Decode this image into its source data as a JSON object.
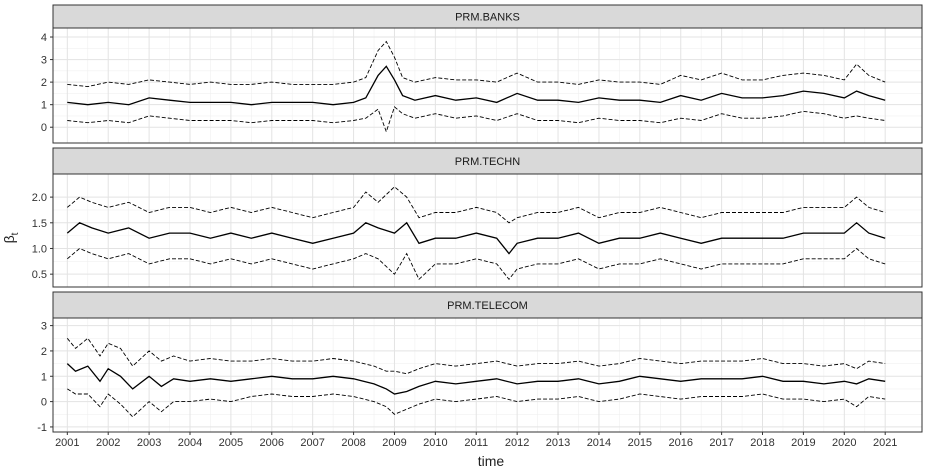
{
  "chart_data": {
    "type": "line",
    "xlabel": "time",
    "ylabel": "βt",
    "ylabel_main": "β",
    "ylabel_sub": "t",
    "x_ticks": [
      "2001",
      "2002",
      "2003",
      "2004",
      "2005",
      "2006",
      "2007",
      "2008",
      "2009",
      "2010",
      "2011",
      "2012",
      "2013",
      "2014",
      "2015",
      "2016",
      "2017",
      "2018",
      "2019",
      "2020",
      "2021"
    ],
    "xlim": [
      2000.65,
      2021.9
    ],
    "grid": true,
    "line_color": "#000000",
    "panels": [
      {
        "title": "PRM.BANKS",
        "ylim": [
          -0.7,
          4.4
        ],
        "y_ticks": [
          0,
          1,
          2,
          3,
          4
        ],
        "series": [
          {
            "style": "solid",
            "x": [
              2001,
              2001.5,
              2002,
              2002.5,
              2003,
              2003.5,
              2004,
              2004.5,
              2005,
              2005.5,
              2006,
              2006.5,
              2007,
              2007.5,
              2008,
              2008.3,
              2008.6,
              2008.8,
              2009,
              2009.2,
              2009.5,
              2010,
              2010.5,
              2011,
              2011.5,
              2012,
              2012.5,
              2013,
              2013.5,
              2014,
              2014.5,
              2015,
              2015.5,
              2016,
              2016.5,
              2017,
              2017.5,
              2018,
              2018.5,
              2019,
              2019.5,
              2020,
              2020.3,
              2020.6,
              2021
            ],
            "y": [
              1.1,
              1.0,
              1.1,
              1.0,
              1.3,
              1.2,
              1.1,
              1.1,
              1.1,
              1.0,
              1.1,
              1.1,
              1.1,
              1.0,
              1.1,
              1.3,
              2.3,
              2.7,
              2.1,
              1.4,
              1.2,
              1.4,
              1.2,
              1.3,
              1.1,
              1.5,
              1.2,
              1.2,
              1.1,
              1.3,
              1.2,
              1.2,
              1.1,
              1.4,
              1.2,
              1.5,
              1.3,
              1.3,
              1.4,
              1.6,
              1.5,
              1.3,
              1.6,
              1.4,
              1.2
            ]
          },
          {
            "style": "dashed",
            "x": [
              2001,
              2001.5,
              2002,
              2002.5,
              2003,
              2003.5,
              2004,
              2004.5,
              2005,
              2005.5,
              2006,
              2006.5,
              2007,
              2007.5,
              2008,
              2008.3,
              2008.6,
              2008.8,
              2009,
              2009.2,
              2009.5,
              2010,
              2010.5,
              2011,
              2011.5,
              2012,
              2012.5,
              2013,
              2013.5,
              2014,
              2014.5,
              2015,
              2015.5,
              2016,
              2016.5,
              2017,
              2017.5,
              2018,
              2018.5,
              2019,
              2019.5,
              2020,
              2020.3,
              2020.6,
              2021
            ],
            "y": [
              1.9,
              1.8,
              2.0,
              1.9,
              2.1,
              2.0,
              1.9,
              2.0,
              1.9,
              1.9,
              2.0,
              1.9,
              1.9,
              1.9,
              2.0,
              2.2,
              3.4,
              3.8,
              3.1,
              2.2,
              2.0,
              2.2,
              2.1,
              2.1,
              2.0,
              2.4,
              2.0,
              2.0,
              1.9,
              2.1,
              2.0,
              2.0,
              1.9,
              2.3,
              2.1,
              2.4,
              2.1,
              2.1,
              2.3,
              2.4,
              2.3,
              2.1,
              2.8,
              2.3,
              2.0
            ]
          },
          {
            "style": "dashed",
            "x": [
              2001,
              2001.5,
              2002,
              2002.5,
              2003,
              2003.5,
              2004,
              2004.5,
              2005,
              2005.5,
              2006,
              2006.5,
              2007,
              2007.5,
              2008,
              2008.3,
              2008.6,
              2008.8,
              2009,
              2009.2,
              2009.5,
              2010,
              2010.5,
              2011,
              2011.5,
              2012,
              2012.5,
              2013,
              2013.5,
              2014,
              2014.5,
              2015,
              2015.5,
              2016,
              2016.5,
              2017,
              2017.5,
              2018,
              2018.5,
              2019,
              2019.5,
              2020,
              2020.3,
              2020.6,
              2021
            ],
            "y": [
              0.3,
              0.2,
              0.3,
              0.2,
              0.5,
              0.4,
              0.3,
              0.3,
              0.3,
              0.2,
              0.3,
              0.3,
              0.3,
              0.2,
              0.3,
              0.4,
              0.8,
              -0.2,
              0.9,
              0.6,
              0.4,
              0.6,
              0.4,
              0.5,
              0.3,
              0.6,
              0.3,
              0.3,
              0.2,
              0.4,
              0.3,
              0.3,
              0.2,
              0.4,
              0.3,
              0.6,
              0.4,
              0.4,
              0.5,
              0.7,
              0.6,
              0.4,
              0.5,
              0.4,
              0.3
            ]
          }
        ]
      },
      {
        "title": "PRM.TECHN",
        "ylim": [
          0.25,
          2.45
        ],
        "y_ticks": [
          0.5,
          1.0,
          1.5,
          2.0
        ],
        "y_tick_labels": [
          "0.5",
          "1.0",
          "1.5",
          "2.0"
        ],
        "series": [
          {
            "style": "solid",
            "x": [
              2001,
              2001.3,
              2001.6,
              2002,
              2002.5,
              2003,
              2003.5,
              2004,
              2004.5,
              2005,
              2005.5,
              2006,
              2006.5,
              2007,
              2007.5,
              2008,
              2008.3,
              2008.6,
              2009,
              2009.3,
              2009.6,
              2010,
              2010.5,
              2011,
              2011.5,
              2011.8,
              2012,
              2012.5,
              2013,
              2013.5,
              2014,
              2014.5,
              2015,
              2015.5,
              2016,
              2016.5,
              2017,
              2017.5,
              2018,
              2018.5,
              2019,
              2019.5,
              2020,
              2020.3,
              2020.6,
              2021
            ],
            "y": [
              1.3,
              1.5,
              1.4,
              1.3,
              1.4,
              1.2,
              1.3,
              1.3,
              1.2,
              1.3,
              1.2,
              1.3,
              1.2,
              1.1,
              1.2,
              1.3,
              1.5,
              1.4,
              1.3,
              1.5,
              1.1,
              1.2,
              1.2,
              1.3,
              1.2,
              0.9,
              1.1,
              1.2,
              1.2,
              1.3,
              1.1,
              1.2,
              1.2,
              1.3,
              1.2,
              1.1,
              1.2,
              1.2,
              1.2,
              1.2,
              1.3,
              1.3,
              1.3,
              1.5,
              1.3,
              1.2
            ]
          },
          {
            "style": "dashed",
            "x": [
              2001,
              2001.3,
              2001.6,
              2002,
              2002.5,
              2003,
              2003.5,
              2004,
              2004.5,
              2005,
              2005.5,
              2006,
              2006.5,
              2007,
              2007.5,
              2008,
              2008.3,
              2008.6,
              2009,
              2009.3,
              2009.6,
              2010,
              2010.5,
              2011,
              2011.5,
              2011.8,
              2012,
              2012.5,
              2013,
              2013.5,
              2014,
              2014.5,
              2015,
              2015.5,
              2016,
              2016.5,
              2017,
              2017.5,
              2018,
              2018.5,
              2019,
              2019.5,
              2020,
              2020.3,
              2020.6,
              2021
            ],
            "y": [
              1.8,
              2.0,
              1.9,
              1.8,
              1.9,
              1.7,
              1.8,
              1.8,
              1.7,
              1.8,
              1.7,
              1.8,
              1.7,
              1.6,
              1.7,
              1.8,
              2.1,
              1.9,
              2.2,
              2.0,
              1.6,
              1.7,
              1.7,
              1.8,
              1.7,
              1.5,
              1.6,
              1.7,
              1.7,
              1.8,
              1.6,
              1.7,
              1.7,
              1.8,
              1.7,
              1.6,
              1.7,
              1.7,
              1.7,
              1.7,
              1.8,
              1.8,
              1.8,
              2.0,
              1.8,
              1.7
            ]
          },
          {
            "style": "dashed",
            "x": [
              2001,
              2001.3,
              2001.6,
              2002,
              2002.5,
              2003,
              2003.5,
              2004,
              2004.5,
              2005,
              2005.5,
              2006,
              2006.5,
              2007,
              2007.5,
              2008,
              2008.3,
              2008.6,
              2009,
              2009.3,
              2009.6,
              2010,
              2010.5,
              2011,
              2011.5,
              2011.8,
              2012,
              2012.5,
              2013,
              2013.5,
              2014,
              2014.5,
              2015,
              2015.5,
              2016,
              2016.5,
              2017,
              2017.5,
              2018,
              2018.5,
              2019,
              2019.5,
              2020,
              2020.3,
              2020.6,
              2021
            ],
            "y": [
              0.8,
              1.0,
              0.9,
              0.8,
              0.9,
              0.7,
              0.8,
              0.8,
              0.7,
              0.8,
              0.7,
              0.8,
              0.7,
              0.6,
              0.7,
              0.8,
              0.9,
              0.8,
              0.5,
              0.9,
              0.4,
              0.7,
              0.7,
              0.8,
              0.7,
              0.4,
              0.6,
              0.7,
              0.7,
              0.8,
              0.6,
              0.7,
              0.7,
              0.8,
              0.7,
              0.6,
              0.7,
              0.7,
              0.7,
              0.7,
              0.8,
              0.8,
              0.8,
              1.0,
              0.8,
              0.7
            ]
          }
        ]
      },
      {
        "title": "PRM.TELECOM",
        "ylim": [
          -1.2,
          3.3
        ],
        "y_ticks": [
          -1,
          0,
          1,
          2,
          3
        ],
        "series": [
          {
            "style": "solid",
            "x": [
              2001,
              2001.2,
              2001.5,
              2001.8,
              2002,
              2002.3,
              2002.6,
              2003,
              2003.3,
              2003.6,
              2004,
              2004.5,
              2005,
              2005.5,
              2006,
              2006.5,
              2007,
              2007.5,
              2008,
              2008.5,
              2008.8,
              2009,
              2009.3,
              2009.6,
              2010,
              2010.5,
              2011,
              2011.5,
              2012,
              2012.5,
              2013,
              2013.5,
              2014,
              2014.5,
              2015,
              2015.5,
              2016,
              2016.5,
              2017,
              2017.5,
              2018,
              2018.5,
              2019,
              2019.5,
              2020,
              2020.3,
              2020.6,
              2021
            ],
            "y": [
              1.5,
              1.2,
              1.4,
              0.8,
              1.3,
              1.0,
              0.5,
              1.0,
              0.6,
              0.9,
              0.8,
              0.9,
              0.8,
              0.9,
              1.0,
              0.9,
              0.9,
              1.0,
              0.9,
              0.7,
              0.5,
              0.3,
              0.4,
              0.6,
              0.8,
              0.7,
              0.8,
              0.9,
              0.7,
              0.8,
              0.8,
              0.9,
              0.7,
              0.8,
              1.0,
              0.9,
              0.8,
              0.9,
              0.9,
              0.9,
              1.0,
              0.8,
              0.8,
              0.7,
              0.8,
              0.7,
              0.9,
              0.8
            ]
          },
          {
            "style": "dashed",
            "x": [
              2001,
              2001.2,
              2001.5,
              2001.8,
              2002,
              2002.3,
              2002.6,
              2003,
              2003.3,
              2003.6,
              2004,
              2004.5,
              2005,
              2005.5,
              2006,
              2006.5,
              2007,
              2007.5,
              2008,
              2008.5,
              2008.8,
              2009,
              2009.3,
              2009.6,
              2010,
              2010.5,
              2011,
              2011.5,
              2012,
              2012.5,
              2013,
              2013.5,
              2014,
              2014.5,
              2015,
              2015.5,
              2016,
              2016.5,
              2017,
              2017.5,
              2018,
              2018.5,
              2019,
              2019.5,
              2020,
              2020.3,
              2020.6,
              2021
            ],
            "y": [
              2.5,
              2.1,
              2.5,
              1.8,
              2.3,
              2.1,
              1.4,
              2.0,
              1.6,
              1.8,
              1.6,
              1.7,
              1.6,
              1.6,
              1.7,
              1.6,
              1.6,
              1.7,
              1.6,
              1.4,
              1.2,
              1.2,
              1.1,
              1.3,
              1.5,
              1.4,
              1.5,
              1.6,
              1.4,
              1.5,
              1.5,
              1.6,
              1.4,
              1.5,
              1.7,
              1.6,
              1.5,
              1.6,
              1.6,
              1.6,
              1.7,
              1.5,
              1.5,
              1.4,
              1.5,
              1.3,
              1.6,
              1.5
            ]
          },
          {
            "style": "dashed",
            "x": [
              2001,
              2001.2,
              2001.5,
              2001.8,
              2002,
              2002.3,
              2002.6,
              2003,
              2003.3,
              2003.6,
              2004,
              2004.5,
              2005,
              2005.5,
              2006,
              2006.5,
              2007,
              2007.5,
              2008,
              2008.5,
              2008.8,
              2009,
              2009.3,
              2009.6,
              2010,
              2010.5,
              2011,
              2011.5,
              2012,
              2012.5,
              2013,
              2013.5,
              2014,
              2014.5,
              2015,
              2015.5,
              2016,
              2016.5,
              2017,
              2017.5,
              2018,
              2018.5,
              2019,
              2019.5,
              2020,
              2020.3,
              2020.6,
              2021
            ],
            "y": [
              0.5,
              0.3,
              0.3,
              -0.2,
              0.3,
              -0.1,
              -0.6,
              0.0,
              -0.4,
              0.0,
              0.0,
              0.1,
              0.0,
              0.2,
              0.3,
              0.2,
              0.2,
              0.3,
              0.2,
              0.0,
              -0.2,
              -0.5,
              -0.3,
              -0.1,
              0.1,
              0.0,
              0.1,
              0.2,
              0.0,
              0.1,
              0.1,
              0.2,
              0.0,
              0.1,
              0.3,
              0.2,
              0.1,
              0.2,
              0.2,
              0.2,
              0.3,
              0.1,
              0.1,
              0.0,
              0.1,
              -0.2,
              0.2,
              0.1
            ]
          }
        ]
      }
    ]
  }
}
